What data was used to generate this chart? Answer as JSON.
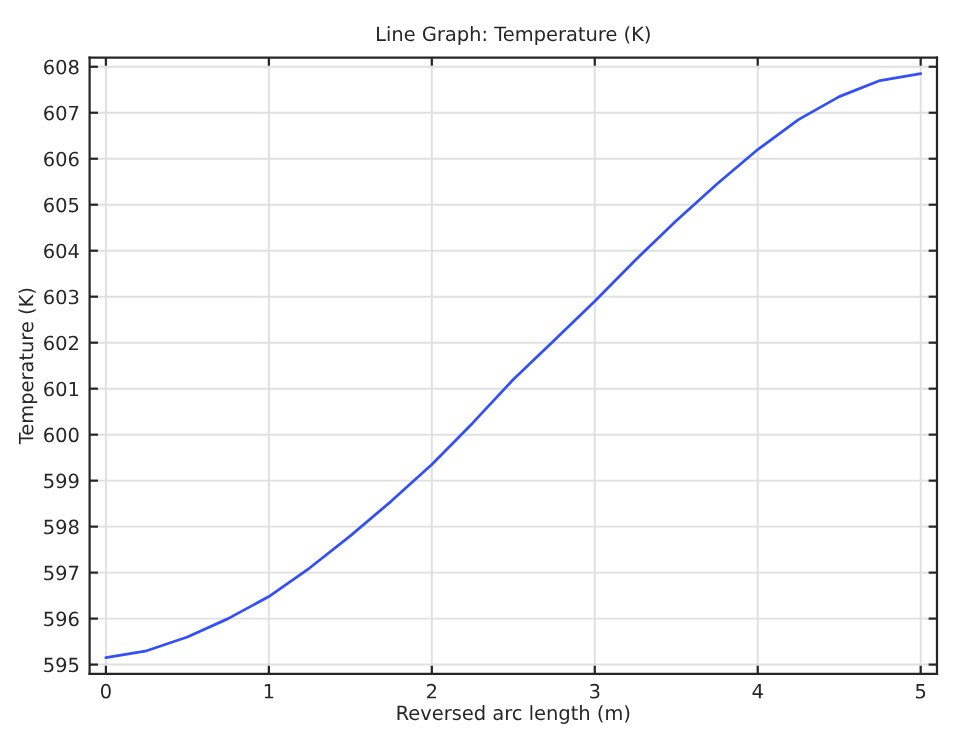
{
  "chart_data": {
    "type": "line",
    "title": "Line Graph: Temperature (K)",
    "xlabel": "Reversed arc length (m)",
    "ylabel": "Temperature (K)",
    "x": [
      0,
      0.25,
      0.5,
      0.75,
      1,
      1.25,
      1.5,
      1.75,
      2,
      2.25,
      2.5,
      2.75,
      3,
      3.25,
      3.5,
      3.75,
      4,
      4.25,
      4.5,
      4.75,
      5
    ],
    "series": [
      {
        "color": "#3350f5",
        "values": [
          595.15,
          595.3,
          595.6,
          596.0,
          596.48,
          597.1,
          597.8,
          598.55,
          599.35,
          600.25,
          601.2,
          602.05,
          602.9,
          603.8,
          604.65,
          605.45,
          606.2,
          606.85,
          607.35,
          607.7,
          607.85
        ]
      }
    ],
    "xlim": [
      -0.1,
      5.1
    ],
    "ylim": [
      594.8,
      608.2
    ],
    "xticks": [
      0,
      1,
      2,
      3,
      4,
      5
    ],
    "yticks": [
      595,
      596,
      597,
      598,
      599,
      600,
      601,
      602,
      603,
      604,
      605,
      606,
      607,
      608
    ],
    "grid": true
  }
}
